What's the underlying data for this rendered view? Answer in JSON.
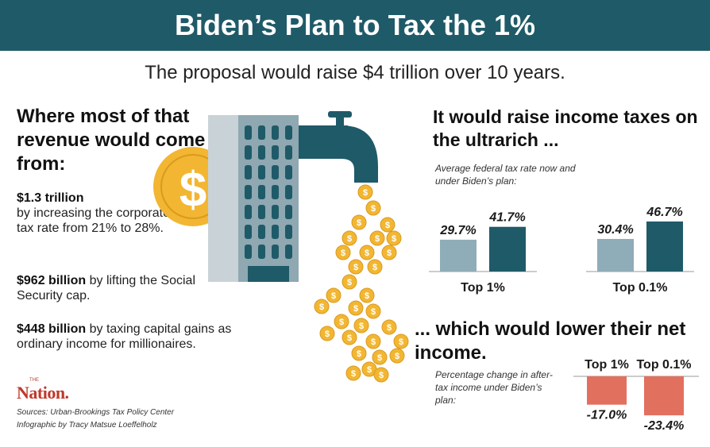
{
  "banner": {
    "title": "Biden’s Plan to Tax the 1%"
  },
  "subtitle": "The proposal would raise $4 trillion over 10 years.",
  "left": {
    "heading": "Where most of that revenue would come from:",
    "items": [
      {
        "amount": "$1.3 trillion",
        "text": "by increasing the corporate tax rate from 21% to 28%."
      },
      {
        "amount": "$962 billion",
        "text": "by lifting the Social Security cap."
      },
      {
        "amount": "$448 billion",
        "text": "by taxing capital gains as ordinary income for millionaires."
      }
    ]
  },
  "brand": {
    "logo": "Nation.",
    "logo_small": "THE"
  },
  "credits": {
    "sources": "Sources: Urban-Brookings Tax Policy Center",
    "byline": "Infographic by Tracy Matsue Loeffelholz"
  },
  "colors": {
    "banner": "#1f5a68",
    "now_bar": "#8fadb8",
    "plan_bar": "#1f5a68",
    "negative_bar": "#e2705f",
    "coin": "#f2b632"
  },
  "icons": [
    "dollar-coin-icon",
    "building-icon",
    "faucet-icon",
    "falling-coins-icon"
  ],
  "chart_data": [
    {
      "type": "bar",
      "heading": "It would raise income taxes on the ultrarich ...",
      "note": "Average federal tax rate now and under Biden’s plan:",
      "groups": [
        {
          "label": "Top 1%",
          "values": [
            29.7,
            41.7
          ],
          "value_labels": [
            "29.7%",
            "41.7%"
          ]
        },
        {
          "label": "Top 0.1%",
          "values": [
            30.4,
            46.7
          ],
          "value_labels": [
            "30.4%",
            "46.7%"
          ]
        }
      ],
      "series_colors": [
        "#8fadb8",
        "#1f5a68"
      ]
    },
    {
      "type": "bar",
      "heading": "... which would lower their net income.",
      "note": "Percentage change in after-tax income under Biden’s plan:",
      "categories": [
        "Top 1%",
        "Top 0.1%"
      ],
      "values": [
        -17.0,
        -23.4
      ],
      "value_labels": [
        "-17.0%",
        "-23.4%"
      ],
      "color": "#e2705f"
    }
  ]
}
